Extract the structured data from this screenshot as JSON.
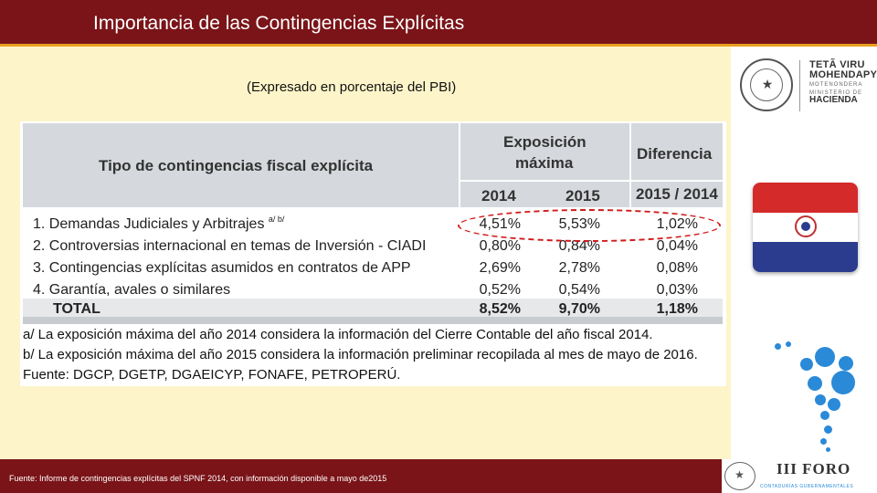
{
  "header": {
    "title": "Importancia de las Contingencias Explícitas"
  },
  "subtitle": "(Expresado en porcentaje del PBI)",
  "table": {
    "col_tipo": "Tipo de contingencias fiscal explícita",
    "col_exposicion_l1": "Exposición",
    "col_exposicion_l2": "máxima",
    "col_diferencia": "Diferencia",
    "col_2014": "2014",
    "col_2015": "2015",
    "col_diff_years": "2015 / 2014",
    "rows": [
      {
        "label": "1. Demandas Judiciales y Arbitrajes",
        "sup": "a/ b/",
        "v2014": "4,51%",
        "v2015": "5,53%",
        "diff": "1,02%"
      },
      {
        "label": "2. Controversias internacional en temas de Inversión - CIADI",
        "sup": "",
        "v2014": "0,80%",
        "v2015": "0,84%",
        "diff": "0,04%"
      },
      {
        "label": "3. Contingencias explícitas asumidos en contratos de APP",
        "sup": "",
        "v2014": "2,69%",
        "v2015": "2,78%",
        "diff": "0,08%"
      },
      {
        "label": "4. Garantía, avales o similares",
        "sup": "",
        "v2014": "0,52%",
        "v2015": "0,54%",
        "diff": "0,03%"
      }
    ],
    "total": {
      "label": "TOTAL",
      "v2014": "8,52%",
      "v2015": "9,70%",
      "diff": "1,18%"
    },
    "notes": [
      "a/ La exposición máxima del año 2014 considera la información del Cierre Contable del año fiscal 2014.",
      "b/ La exposición máxima del año 2015 considera la información preliminar recopilada al mes de mayo de 2016.",
      "Fuente: DGCP, DGETP, DGAEICYP, FONAFE, PETROPERÚ."
    ]
  },
  "ministry": {
    "line1": "TETÃ VIRU",
    "line2": "MOHENDAPY",
    "line3": "MOTENONDERA",
    "line4": "MINISTERIO DE",
    "line5": "HACIENDA"
  },
  "forum": {
    "name": "III FORO",
    "tagline": "CONTADURÍAS GUBERNAMENTALES"
  },
  "footer": {
    "source": "Fuente: Informe de contingencias explícitas del SPNF 2014, con información disponible a mayo de2015"
  },
  "colors": {
    "header_bar": "#7a1418",
    "accent_line": "#e8a020",
    "background": "#fdf5c9",
    "highlight": "#d11a1a"
  }
}
